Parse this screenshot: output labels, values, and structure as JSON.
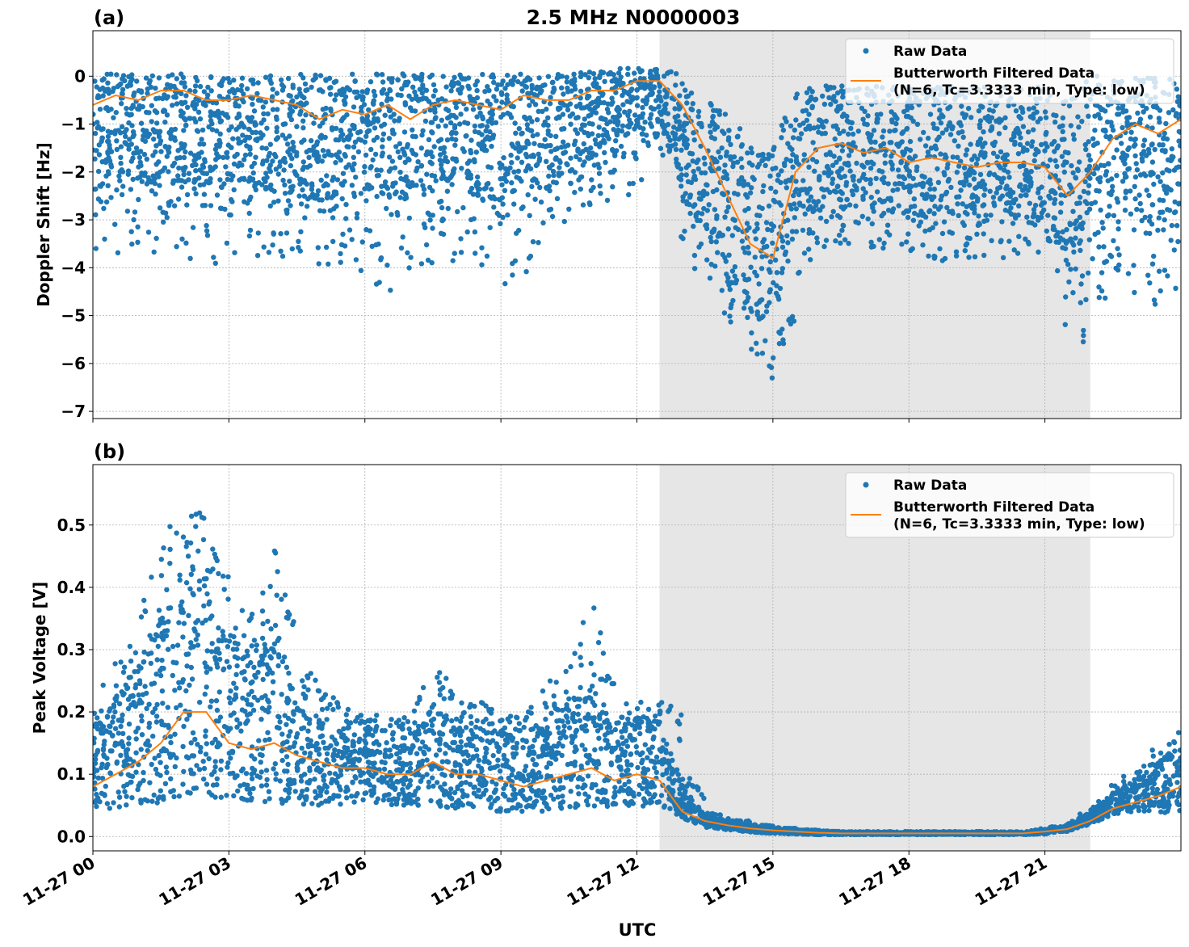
{
  "title": "2.5 MHz N0000003",
  "xlabel": "UTC",
  "x_tick_labels": [
    "11-27 00",
    "11-27 03",
    "11-27 06",
    "11-27 09",
    "11-27 12",
    "11-27 15",
    "11-27 18",
    "11-27 21"
  ],
  "colors": {
    "raw": "#1f77b4",
    "filtered": "#ff7f0e",
    "shade": "#e6e6e6"
  },
  "legend": {
    "raw": "Raw Data",
    "filtered_line1": "Butterworth Filtered Data",
    "filtered_line2": "(N=6, Tc=3.3333 min, Type: low)",
    "placement": "top-right"
  },
  "chart_data": [
    {
      "type": "scatter+line",
      "panel_label": "(a)",
      "ylabel": "Doppler Shift [Hz]",
      "x_unit": "hours UTC on 11-27",
      "xlim": [
        0,
        24
      ],
      "ylim": [
        -7.15,
        0.95
      ],
      "y_ticks": [
        0,
        -1,
        -2,
        -3,
        -4,
        -5,
        -6,
        -7
      ],
      "y_tick_labels": [
        "0",
        "−1",
        "−2",
        "−3",
        "−4",
        "−5",
        "−6",
        "−7"
      ],
      "shaded_x_range": [
        12.5,
        22
      ],
      "grid": true,
      "x": [
        0,
        0.5,
        1,
        1.5,
        2,
        2.5,
        3,
        3.5,
        4,
        4.5,
        5,
        5.5,
        6,
        6.5,
        7,
        7.5,
        8,
        8.5,
        9,
        9.5,
        10,
        10.5,
        11,
        11.5,
        12,
        12.5,
        13,
        13.5,
        14,
        14.5,
        15,
        15.5,
        16,
        16.5,
        17,
        17.5,
        18,
        18.5,
        19,
        19.5,
        20,
        20.5,
        21,
        21.5,
        22,
        22.5,
        23,
        23.5,
        24
      ],
      "filtered": [
        -0.6,
        -0.4,
        -0.5,
        -0.3,
        -0.3,
        -0.5,
        -0.5,
        -0.4,
        -0.5,
        -0.6,
        -0.9,
        -0.7,
        -0.8,
        -0.6,
        -0.9,
        -0.6,
        -0.5,
        -0.6,
        -0.7,
        -0.4,
        -0.5,
        -0.5,
        -0.3,
        -0.3,
        -0.1,
        -0.1,
        -0.6,
        -1.5,
        -2.5,
        -3.5,
        -3.8,
        -2.0,
        -1.5,
        -1.4,
        -1.6,
        -1.5,
        -1.8,
        -1.7,
        -1.8,
        -1.9,
        -1.8,
        -1.8,
        -1.9,
        -2.5,
        -2.0,
        -1.3,
        -1.0,
        -1.2,
        -0.9
      ],
      "raw_band_low": [
        -2.3,
        -2.3,
        -2.2,
        -2.3,
        -2.2,
        -2.3,
        -2.4,
        -2.3,
        -2.4,
        -2.5,
        -2.6,
        -2.5,
        -2.6,
        -2.5,
        -2.6,
        -2.4,
        -2.4,
        -2.5,
        -2.6,
        -2.3,
        -2.2,
        -2.1,
        -1.8,
        -1.6,
        -1.2,
        -1.0,
        -2.5,
        -3.3,
        -4.2,
        -5.0,
        -5.2,
        -3.2,
        -2.8,
        -2.7,
        -2.7,
        -2.8,
        -2.9,
        -2.9,
        -2.9,
        -2.9,
        -2.9,
        -2.9,
        -2.9,
        -4.0,
        -3.5,
        -3.0,
        -3.0,
        -3.0,
        -2.8
      ],
      "raw_band_high": [
        0.05,
        0.05,
        0.05,
        0.05,
        0.05,
        0.05,
        0.05,
        0.05,
        0.05,
        0.05,
        0.05,
        0.05,
        0.05,
        0.05,
        0.05,
        0.05,
        0.05,
        0.05,
        0.05,
        0.05,
        0.05,
        0.05,
        0.1,
        0.15,
        0.2,
        0.2,
        0.0,
        -0.5,
        -0.6,
        -1.5,
        -1.5,
        -0.3,
        -0.2,
        -0.2,
        -0.2,
        -0.2,
        -0.2,
        -0.2,
        -0.2,
        -0.2,
        -0.2,
        -0.2,
        -0.2,
        -0.5,
        0.0,
        0.0,
        0.0,
        0.0,
        0.0
      ],
      "raw_min": [
        -3.9,
        -3.7,
        -4.0,
        -3.8,
        -4.0,
        -4.4,
        -3.8,
        -3.7,
        -3.9,
        -4.2,
        -4.1,
        -4.0,
        -4.2,
        -4.6,
        -4.1,
        -4.3,
        -3.9,
        -4.2,
        -4.5,
        -4.4,
        -3.2,
        -3.0,
        -2.9,
        -2.8,
        -2.4,
        -1.5,
        -3.5,
        -4.8,
        -5.0,
        -6.0,
        -6.8,
        -4.3,
        -3.8,
        -3.8,
        -3.6,
        -3.7,
        -3.9,
        -3.8,
        -4.0,
        -3.8,
        -3.9,
        -3.8,
        -3.9,
        -6.1,
        -5.5,
        -4.5,
        -5.3,
        -4.7,
        -4.5
      ]
    },
    {
      "type": "scatter+line",
      "panel_label": "(b)",
      "ylabel": "Peak Voltage [V]",
      "x_unit": "hours UTC on 11-27",
      "xlim": [
        0,
        24
      ],
      "ylim": [
        -0.023,
        0.597
      ],
      "y_ticks": [
        0.0,
        0.1,
        0.2,
        0.3,
        0.4,
        0.5
      ],
      "y_tick_labels": [
        "0.0",
        "0.1",
        "0.2",
        "0.3",
        "0.4",
        "0.5"
      ],
      "shaded_x_range": [
        12.5,
        22
      ],
      "grid": true,
      "x": [
        0,
        0.5,
        1,
        1.5,
        2,
        2.5,
        3,
        3.5,
        4,
        4.5,
        5,
        5.5,
        6,
        6.5,
        7,
        7.5,
        8,
        8.5,
        9,
        9.5,
        10,
        10.5,
        11,
        11.5,
        12,
        12.5,
        13,
        13.5,
        14,
        14.5,
        15,
        15.5,
        16,
        16.5,
        17,
        17.5,
        18,
        18.5,
        19,
        19.5,
        20,
        20.5,
        21,
        21.5,
        22,
        22.5,
        23,
        23.5,
        24
      ],
      "filtered": [
        0.08,
        0.1,
        0.12,
        0.15,
        0.2,
        0.2,
        0.15,
        0.14,
        0.15,
        0.13,
        0.12,
        0.11,
        0.11,
        0.1,
        0.1,
        0.12,
        0.1,
        0.1,
        0.09,
        0.08,
        0.09,
        0.1,
        0.11,
        0.09,
        0.1,
        0.09,
        0.04,
        0.025,
        0.018,
        0.013,
        0.01,
        0.008,
        0.006,
        0.005,
        0.005,
        0.005,
        0.005,
        0.005,
        0.005,
        0.005,
        0.005,
        0.005,
        0.008,
        0.012,
        0.025,
        0.045,
        0.055,
        0.065,
        0.08
      ],
      "raw_band_low": [
        0.04,
        0.045,
        0.05,
        0.055,
        0.06,
        0.06,
        0.055,
        0.055,
        0.055,
        0.05,
        0.05,
        0.05,
        0.05,
        0.05,
        0.05,
        0.05,
        0.045,
        0.045,
        0.04,
        0.04,
        0.04,
        0.045,
        0.045,
        0.045,
        0.05,
        0.045,
        0.03,
        0.015,
        0.01,
        0.007,
        0.005,
        0.004,
        0.003,
        0.003,
        0.003,
        0.003,
        0.003,
        0.003,
        0.003,
        0.003,
        0.003,
        0.003,
        0.004,
        0.008,
        0.02,
        0.035,
        0.04,
        0.04,
        0.035
      ],
      "raw_band_high": [
        0.17,
        0.22,
        0.28,
        0.35,
        0.45,
        0.42,
        0.3,
        0.3,
        0.35,
        0.22,
        0.2,
        0.18,
        0.17,
        0.17,
        0.16,
        0.22,
        0.18,
        0.18,
        0.17,
        0.16,
        0.2,
        0.22,
        0.25,
        0.18,
        0.18,
        0.2,
        0.08,
        0.035,
        0.025,
        0.018,
        0.013,
        0.01,
        0.008,
        0.007,
        0.007,
        0.007,
        0.007,
        0.007,
        0.007,
        0.007,
        0.007,
        0.007,
        0.012,
        0.018,
        0.04,
        0.07,
        0.09,
        0.12,
        0.15
      ],
      "raw_max": [
        0.2,
        0.3,
        0.34,
        0.5,
        0.57,
        0.52,
        0.36,
        0.4,
        0.48,
        0.3,
        0.25,
        0.21,
        0.2,
        0.2,
        0.19,
        0.29,
        0.23,
        0.22,
        0.2,
        0.2,
        0.25,
        0.28,
        0.41,
        0.22,
        0.21,
        0.3,
        0.12,
        0.04,
        0.03,
        0.02,
        0.015,
        0.012,
        0.01,
        0.008,
        0.008,
        0.008,
        0.008,
        0.008,
        0.008,
        0.008,
        0.008,
        0.008,
        0.014,
        0.02,
        0.05,
        0.09,
        0.12,
        0.15,
        0.19
      ]
    }
  ]
}
